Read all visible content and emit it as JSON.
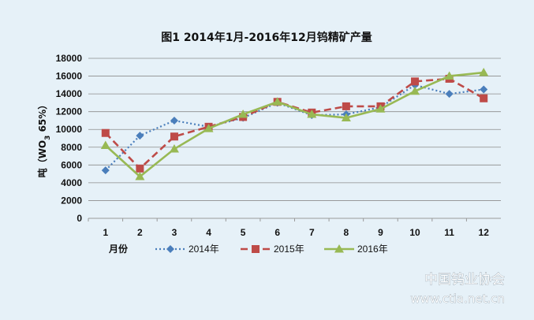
{
  "chart_data": {
    "type": "line",
    "title": "图1  2014年1月-2016年12月钨精矿产量",
    "xlabel": "月份",
    "ylabel": "吨（WO3 65%）",
    "ylim": [
      0,
      18000
    ],
    "yticks": [
      0,
      2000,
      4000,
      6000,
      8000,
      10000,
      12000,
      14000,
      16000,
      18000
    ],
    "categories": [
      "1",
      "2",
      "3",
      "4",
      "5",
      "6",
      "7",
      "8",
      "9",
      "10",
      "11",
      "12"
    ],
    "grid": true,
    "legend_position": "bottom",
    "series": [
      {
        "name": "2014年",
        "color": "#4a7ebb",
        "marker": "diamond",
        "line_style": "dotted",
        "values": [
          5400,
          9300,
          11000,
          10300,
          11300,
          13000,
          11600,
          11700,
          12500,
          15000,
          14000,
          14500
        ]
      },
      {
        "name": "2015年",
        "color": "#be4b48",
        "marker": "square",
        "line_style": "dashed",
        "values": [
          9600,
          5600,
          9200,
          10300,
          11400,
          13100,
          11900,
          12600,
          12600,
          15400,
          15700,
          13500
        ]
      },
      {
        "name": "2016年",
        "color": "#98b954",
        "marker": "triangle",
        "line_style": "solid",
        "values": [
          8200,
          4700,
          7800,
          10100,
          11700,
          13100,
          11700,
          11300,
          12300,
          14300,
          16000,
          16400
        ]
      }
    ]
  },
  "watermark": {
    "line1": "中国钨业协会",
    "line2": "www.ctia.net.cn"
  }
}
